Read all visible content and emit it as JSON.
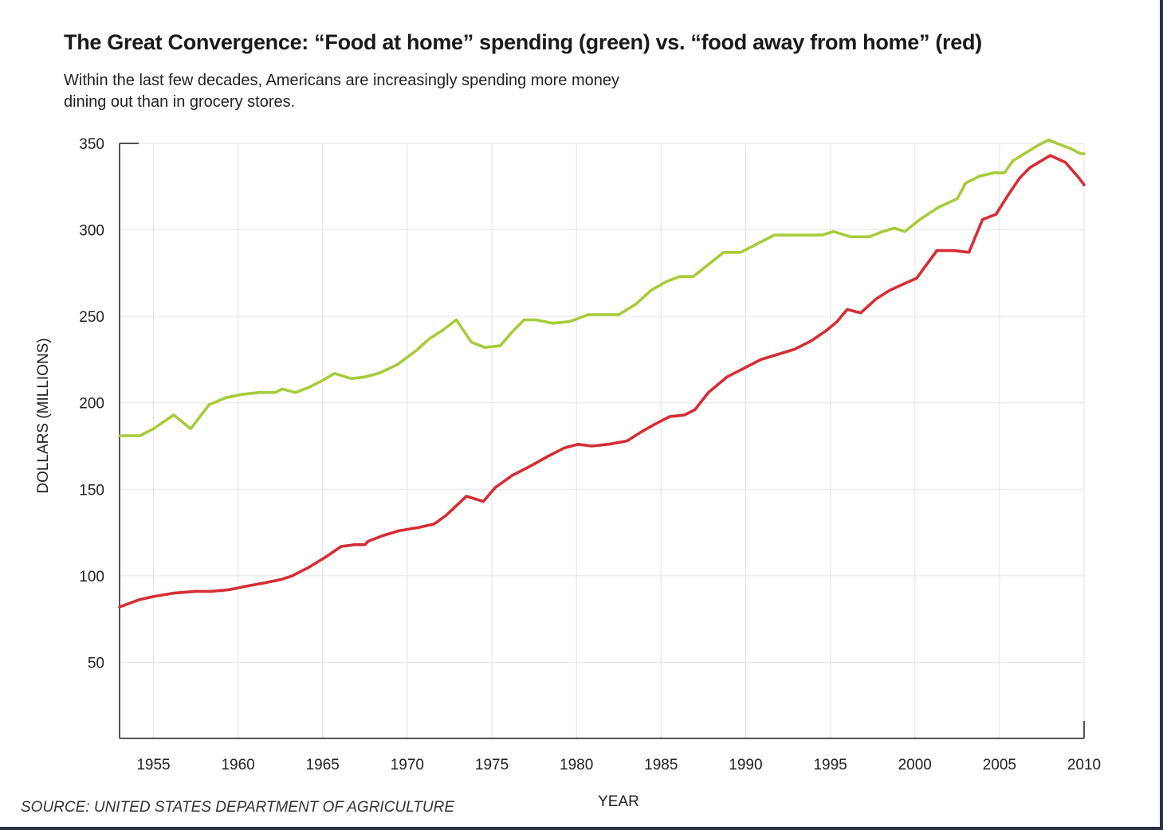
{
  "chart_data": {
    "type": "line",
    "title": "The Great Convergence: “Food at home” spending (green) vs. “food away from home” (red)",
    "subtitle": "Within the last few decades, Americans are increasingly spending more money dining out than in grocery stores.",
    "xlabel": "YEAR",
    "ylabel": "DOLLARS (MILLIONS)",
    "source": "SOURCE: UNITED STATES DEPARTMENT OF AGRICULTURE",
    "xlim": [
      1953,
      2010
    ],
    "ylim": [
      6,
      350
    ],
    "x_ticks": [
      1955,
      1960,
      1965,
      1970,
      1975,
      1980,
      1985,
      1990,
      1995,
      2000,
      2005,
      2010
    ],
    "y_ticks": [
      50,
      100,
      150,
      200,
      250,
      300,
      350
    ],
    "grid": true,
    "legend": "none (colors described in title)",
    "series": [
      {
        "color": "#a6cc3a",
        "points": [
          [
            1953,
            181
          ],
          [
            1954.2,
            181
          ],
          [
            1955,
            185
          ],
          [
            1956.2,
            193
          ],
          [
            1957.2,
            185
          ],
          [
            1958.3,
            199
          ],
          [
            1959.3,
            203
          ],
          [
            1960.3,
            205
          ],
          [
            1961.3,
            206
          ],
          [
            1962.2,
            206
          ],
          [
            1962.6,
            208
          ],
          [
            1963.4,
            206
          ],
          [
            1964.2,
            209
          ],
          [
            1965,
            213
          ],
          [
            1965.7,
            217
          ],
          [
            1966.7,
            214
          ],
          [
            1967.5,
            215
          ],
          [
            1968.3,
            217
          ],
          [
            1969.4,
            222
          ],
          [
            1970.5,
            230
          ],
          [
            1971.3,
            237
          ],
          [
            1972.1,
            242
          ],
          [
            1972.9,
            248
          ],
          [
            1973.8,
            235
          ],
          [
            1974.6,
            232
          ],
          [
            1975.5,
            233
          ],
          [
            1976.2,
            241
          ],
          [
            1976.9,
            248
          ],
          [
            1977.6,
            248
          ],
          [
            1978.6,
            246
          ],
          [
            1979.6,
            247
          ],
          [
            1980.7,
            251
          ],
          [
            1981.5,
            251
          ],
          [
            1982.5,
            251
          ],
          [
            1983.5,
            257
          ],
          [
            1984.4,
            265
          ],
          [
            1985.3,
            270
          ],
          [
            1986.1,
            273
          ],
          [
            1986.9,
            273
          ],
          [
            1987.8,
            280
          ],
          [
            1988.7,
            287
          ],
          [
            1989.7,
            287
          ],
          [
            1990.7,
            292
          ],
          [
            1991.7,
            297
          ],
          [
            1992.6,
            297
          ],
          [
            1993.6,
            297
          ],
          [
            1994.5,
            297
          ],
          [
            1995.2,
            299
          ],
          [
            1996.2,
            296
          ],
          [
            1997.3,
            296
          ],
          [
            1998.1,
            299
          ],
          [
            1998.8,
            301
          ],
          [
            1999.4,
            299
          ],
          [
            2000.3,
            306
          ],
          [
            2001.4,
            313
          ],
          [
            2002.5,
            318
          ],
          [
            2003,
            327
          ],
          [
            2003.8,
            331
          ],
          [
            2004.7,
            333
          ],
          [
            2005.3,
            333
          ],
          [
            2005.8,
            340
          ],
          [
            2007.3,
            349
          ],
          [
            2007.9,
            352
          ],
          [
            2008.4,
            350
          ],
          [
            2009.2,
            347
          ],
          [
            2009.8,
            344
          ],
          [
            2010,
            344
          ]
        ]
      },
      {
        "color": "#d62d35",
        "points": [
          [
            1953,
            82
          ],
          [
            1954.1,
            86
          ],
          [
            1955,
            88
          ],
          [
            1956.2,
            90
          ],
          [
            1957.5,
            91
          ],
          [
            1958.4,
            91
          ],
          [
            1959.5,
            92
          ],
          [
            1960.5,
            94
          ],
          [
            1961.6,
            96
          ],
          [
            1962.6,
            98
          ],
          [
            1963.2,
            100
          ],
          [
            1964.2,
            105
          ],
          [
            1965.2,
            111
          ],
          [
            1966.1,
            117
          ],
          [
            1966.9,
            118
          ],
          [
            1967.5,
            118
          ],
          [
            1967.7,
            120
          ],
          [
            1968.5,
            123
          ],
          [
            1969.5,
            126
          ],
          [
            1970.7,
            128
          ],
          [
            1971.6,
            130
          ],
          [
            1972.3,
            135
          ],
          [
            1973.5,
            146
          ],
          [
            1974.5,
            143
          ],
          [
            1975.2,
            151
          ],
          [
            1976.2,
            158
          ],
          [
            1977.2,
            163
          ],
          [
            1978.3,
            169
          ],
          [
            1979.3,
            174
          ],
          [
            1980.1,
            176
          ],
          [
            1980.9,
            175
          ],
          [
            1981.9,
            176
          ],
          [
            1983,
            178
          ],
          [
            1983.8,
            183
          ],
          [
            1984.7,
            188
          ],
          [
            1985.5,
            192
          ],
          [
            1986.4,
            193
          ],
          [
            1987,
            196
          ],
          [
            1987.8,
            206
          ],
          [
            1988.9,
            215
          ],
          [
            1989.9,
            220
          ],
          [
            1990.9,
            225
          ],
          [
            1991.9,
            228
          ],
          [
            1992.9,
            231
          ],
          [
            1993.9,
            236
          ],
          [
            1994.8,
            242
          ],
          [
            1995.4,
            247
          ],
          [
            1996,
            254
          ],
          [
            1996.8,
            252
          ],
          [
            1997.7,
            260
          ],
          [
            1998.5,
            265
          ],
          [
            1999.4,
            269
          ],
          [
            2000.1,
            272
          ],
          [
            2000.7,
            280
          ],
          [
            2001.3,
            288
          ],
          [
            2002.3,
            288
          ],
          [
            2003.2,
            287
          ],
          [
            2004,
            306
          ],
          [
            2004.8,
            309
          ],
          [
            2005.5,
            320
          ],
          [
            2006.2,
            330
          ],
          [
            2006.8,
            336
          ],
          [
            2008,
            343
          ],
          [
            2008.9,
            339
          ],
          [
            2009.7,
            330
          ],
          [
            2010,
            326
          ]
        ]
      }
    ]
  }
}
